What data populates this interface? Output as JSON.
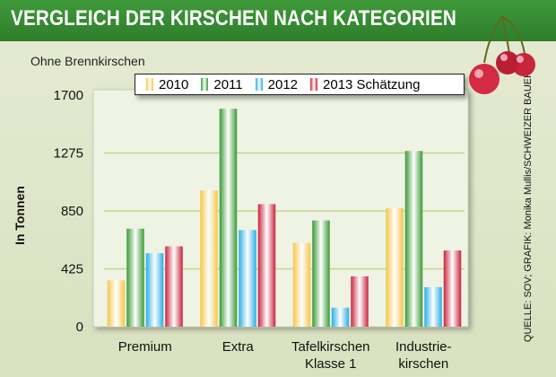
{
  "chart_data": {
    "type": "bar",
    "title": "VERGLEICH DER KIRSCHEN NACH KATEGORIEN",
    "subtitle": "Ohne Brennkirschen",
    "xlabel": "",
    "ylabel": "In Tonnen",
    "ylim": [
      0,
      1700
    ],
    "yticks": [
      0,
      425,
      850,
      1275,
      1700
    ],
    "grid": true,
    "legend_position": "top",
    "categories": [
      [
        "Premium"
      ],
      [
        "Extra"
      ],
      [
        "Tafelkirschen",
        "Klasse 1"
      ],
      [
        "Industrie-",
        "kirschen"
      ]
    ],
    "series": [
      {
        "name": "2010",
        "color": "#f5c64a",
        "values": [
          340,
          1000,
          615,
          870
        ]
      },
      {
        "name": "2011",
        "color": "#3a9a35",
        "values": [
          720,
          1600,
          780,
          1290
        ]
      },
      {
        "name": "2012",
        "color": "#2aaee6",
        "values": [
          540,
          710,
          140,
          290
        ]
      },
      {
        "name": "2013 Schätzung",
        "color": "#c8243c",
        "values": [
          590,
          900,
          370,
          560
        ]
      }
    ],
    "source": "QUELLE: SOV; GRAFIK: Monika Mullis/SCHWEIZER BAUER"
  }
}
